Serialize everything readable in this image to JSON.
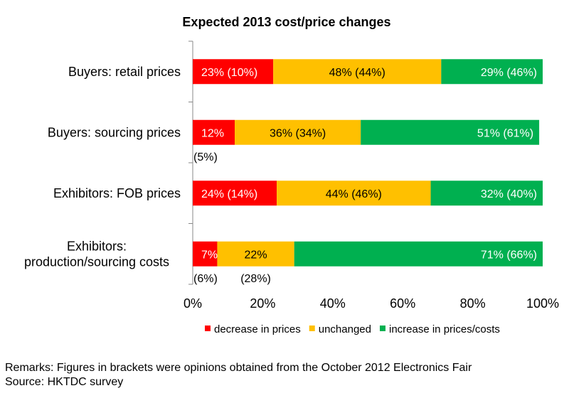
{
  "chart_data": {
    "type": "bar",
    "orientation": "horizontal",
    "stacked": true,
    "percent": true,
    "title": "Expected 2013 cost/price changes",
    "categories": [
      "Buyers: retail prices",
      "Buyers: sourcing prices",
      "Exhibitors: FOB prices",
      "Exhibitors: production/sourcing costs"
    ],
    "series": [
      {
        "name": "decrease in prices",
        "color": "#ff0000",
        "values": [
          23,
          12,
          24,
          7
        ],
        "labels": [
          "23% (10%)",
          "12%",
          "24% (14%)",
          "7%"
        ],
        "outside_labels": [
          "",
          "(5%)",
          "",
          "(6%)"
        ]
      },
      {
        "name": "unchanged",
        "color": "#ffc000",
        "values": [
          48,
          36,
          44,
          22
        ],
        "labels": [
          "48% (44%)",
          "36% (34%)",
          "44% (46%)",
          "22%"
        ],
        "outside_labels": [
          "",
          "",
          "",
          "(28%)"
        ]
      },
      {
        "name": "increase in prices/costs",
        "color": "#00b050",
        "values": [
          29,
          51,
          32,
          71
        ],
        "labels": [
          "29% (46%)",
          "51% (61%)",
          "32% (40%)",
          "71% (66%)"
        ],
        "outside_labels": [
          "",
          "",
          "",
          ""
        ]
      }
    ],
    "xlim": [
      0,
      100
    ],
    "xticks": [
      "0%",
      "20%",
      "40%",
      "60%",
      "80%",
      "100%"
    ],
    "grid": "none",
    "legend": "bottom"
  },
  "remarks": "Remarks: Figures in brackets were opinions obtained from the October 2012 Electronics Fair",
  "source": "Source: HKTDC survey"
}
